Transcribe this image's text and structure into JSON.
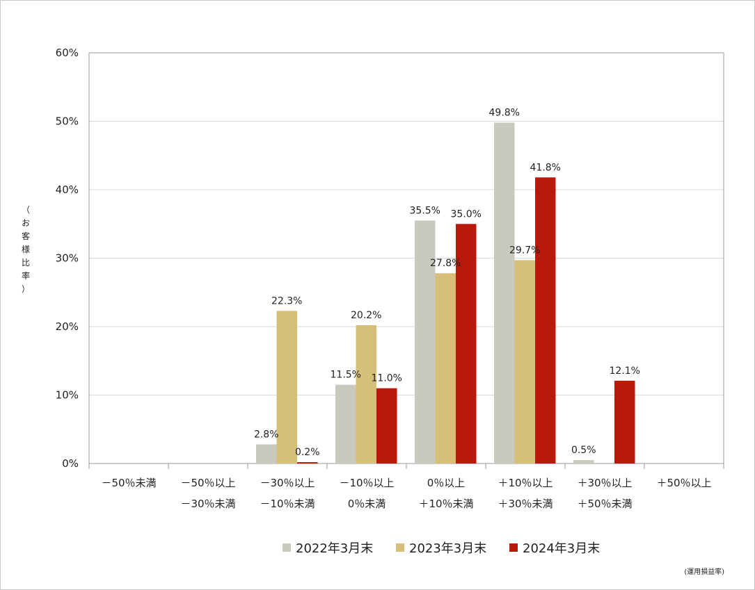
{
  "chart_data": {
    "type": "bar",
    "ylabel": "（お客様比率）",
    "ylim": [
      0,
      60
    ],
    "yticks": [
      "0%",
      "10%",
      "20%",
      "30%",
      "40%",
      "50%",
      "60%"
    ],
    "grid": true,
    "legend_position": "bottom",
    "note": "(運用損益率)",
    "categories": [
      [
        "－50％未満"
      ],
      [
        "－50％以上",
        "－30％未満"
      ],
      [
        "－30％以上",
        "－10％未満"
      ],
      [
        "－10％以上",
        "0％未満"
      ],
      [
        "0％以上",
        "＋10％未満"
      ],
      [
        "＋10％以上",
        "＋30％未満"
      ],
      [
        "＋30％以上",
        "＋50％未満"
      ],
      [
        "＋50％以上"
      ]
    ],
    "series": [
      {
        "name": "2022年3月末",
        "color": "#c9c9bd",
        "values": [
          null,
          null,
          2.8,
          11.5,
          35.5,
          49.8,
          0.5,
          null
        ],
        "labels": [
          "",
          "",
          "2.8%",
          "11.5%",
          "35.5%",
          "49.8%",
          "0.5%",
          ""
        ]
      },
      {
        "name": "2023年3月末",
        "color": "#d6bf78",
        "values": [
          null,
          null,
          22.3,
          20.2,
          27.8,
          29.7,
          null,
          null
        ],
        "labels": [
          "",
          "",
          "22.3%",
          "20.2%",
          "27.8%",
          "29.7%",
          "",
          ""
        ]
      },
      {
        "name": "2024年3月末",
        "color": "#b8190a",
        "values": [
          null,
          null,
          0.2,
          11.0,
          35.0,
          41.8,
          12.1,
          null
        ],
        "labels": [
          "",
          "",
          "0.2%",
          "11.0%",
          "35.0%",
          "41.8%",
          "12.1%",
          ""
        ]
      }
    ]
  }
}
